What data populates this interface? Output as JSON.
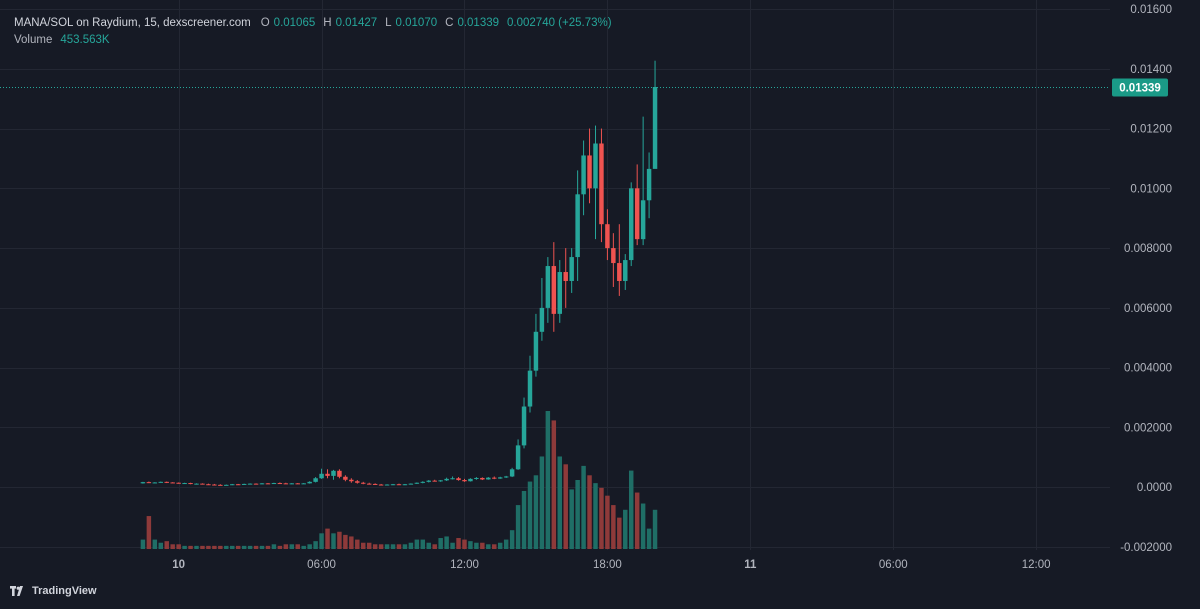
{
  "legend": {
    "symbol": "MANA/SOL on Raydium, 15, dexscreener.com",
    "o_label": "O",
    "o_value": "0.01065",
    "h_label": "H",
    "h_value": "0.01427",
    "l_label": "L",
    "l_value": "0.01070",
    "c_label": "C",
    "c_value": "0.01339",
    "change": "0.002740 (+25.73%)",
    "volume_label": "Volume",
    "volume_value": "453.563K"
  },
  "brand": {
    "name": "TradingView"
  },
  "colors": {
    "background": "#161a25",
    "grid": "#232733",
    "up": "#26a69a",
    "down": "#ef5350",
    "up_volume": "#1f6e66",
    "down_volume": "#8e3a3a",
    "axis_text": "#b2b5be",
    "price_tag": "#1a9a87"
  },
  "chart_data": {
    "type": "candlestick",
    "ylim": [
      -0.0021,
      0.0161
    ],
    "yticks": [
      "0.01600",
      "0.01400",
      "0.01200",
      "0.01000",
      "0.008000",
      "0.006000",
      "0.004000",
      "0.002000",
      "0.0000",
      "-0.002000"
    ],
    "ytick_values": [
      0.016,
      0.014,
      0.012,
      0.01,
      0.008,
      0.006,
      0.004,
      0.002,
      0.0,
      -0.002
    ],
    "xticks": [
      "10",
      "06:00",
      "12:00",
      "18:00",
      "11",
      "06:00",
      "12:00"
    ],
    "xtick_hours": [
      0,
      6,
      12,
      18,
      24,
      30,
      36
    ],
    "xlim_hours": [
      -7.5,
      39.1
    ],
    "last_price": "0.01339",
    "last_price_value": 0.01339,
    "first_candle_hour": -1.5,
    "candle_interval_min": 15,
    "candles": [
      [
        0.00013,
        0.00018,
        0.00012,
        0.00017,
        0.6
      ],
      [
        0.00017,
        0.00019,
        0.00014,
        0.00015,
        2.1
      ],
      [
        0.00015,
        0.00017,
        0.00013,
        0.00016,
        0.6
      ],
      [
        0.00016,
        0.00019,
        0.00015,
        0.00018,
        0.4
      ],
      [
        0.00018,
        0.00019,
        0.00014,
        0.00016,
        0.5
      ],
      [
        0.00016,
        0.00017,
        0.00014,
        0.00015,
        0.3
      ],
      [
        0.00015,
        0.00016,
        0.00012,
        0.00013,
        0.3
      ],
      [
        0.00013,
        0.00015,
        0.00011,
        0.00014,
        0.2
      ],
      [
        0.00014,
        0.00015,
        0.0001,
        0.00011,
        0.2
      ],
      [
        0.00011,
        0.00013,
        9e-05,
        0.00012,
        0.2
      ],
      [
        0.00012,
        0.00013,
        9e-05,
        0.0001,
        0.2
      ],
      [
        0.0001,
        0.00012,
        8e-05,
        9e-05,
        0.2
      ],
      [
        9e-05,
        0.00011,
        7e-05,
        8e-05,
        0.2
      ],
      [
        8e-05,
        0.0001,
        6e-05,
        7e-05,
        0.2
      ],
      [
        7e-05,
        9e-05,
        6e-05,
        8e-05,
        0.2
      ],
      [
        8e-05,
        0.00011,
        7e-05,
        0.0001,
        0.2
      ],
      [
        0.0001,
        0.00011,
        8e-05,
        9e-05,
        0.2
      ],
      [
        9e-05,
        0.00012,
        8e-05,
        0.00011,
        0.2
      ],
      [
        0.00011,
        0.00013,
        0.0001,
        0.00012,
        0.2
      ],
      [
        0.00012,
        0.00013,
        0.0001,
        0.00011,
        0.2
      ],
      [
        0.00011,
        0.00014,
        0.0001,
        0.00013,
        0.2
      ],
      [
        0.00013,
        0.00014,
        0.00011,
        0.00012,
        0.2
      ],
      [
        0.00012,
        0.00015,
        0.00011,
        0.00014,
        0.3
      ],
      [
        0.00014,
        0.00016,
        0.00012,
        0.00013,
        0.2
      ],
      [
        0.00013,
        0.00015,
        0.00011,
        0.00012,
        0.3
      ],
      [
        0.00012,
        0.00014,
        0.0001,
        0.00013,
        0.3
      ],
      [
        0.00013,
        0.00014,
        0.00011,
        0.00012,
        0.3
      ],
      [
        0.00012,
        0.00014,
        0.00011,
        0.00013,
        0.2
      ],
      [
        0.00013,
        0.0002,
        0.00012,
        0.00018,
        0.3
      ],
      [
        0.00018,
        0.00034,
        0.00016,
        0.0003,
        0.5
      ],
      [
        0.0003,
        0.00062,
        0.00028,
        0.00045,
        1.0
      ],
      [
        0.00045,
        0.0006,
        0.0003,
        0.00038,
        1.3
      ],
      [
        0.00038,
        0.00058,
        0.00025,
        0.00055,
        1.0
      ],
      [
        0.00055,
        0.0006,
        0.0003,
        0.00035,
        1.1
      ],
      [
        0.00035,
        0.0004,
        0.0002,
        0.00025,
        0.9
      ],
      [
        0.00025,
        0.0003,
        0.00015,
        0.0002,
        0.8
      ],
      [
        0.0002,
        0.00024,
        0.00012,
        0.00015,
        0.6
      ],
      [
        0.00015,
        0.00018,
        0.0001,
        0.00012,
        0.4
      ],
      [
        0.00012,
        0.00015,
        9e-05,
        0.00011,
        0.4
      ],
      [
        0.00011,
        0.00013,
        8e-05,
        9e-05,
        0.3
      ],
      [
        9e-05,
        0.00011,
        7e-05,
        8e-05,
        0.3
      ],
      [
        8e-05,
        0.0001,
        6e-05,
        9e-05,
        0.3
      ],
      [
        9e-05,
        0.00011,
        7e-05,
        0.0001,
        0.3
      ],
      [
        0.0001,
        0.00012,
        8e-05,
        9e-05,
        0.3
      ],
      [
        9e-05,
        0.00011,
        7e-05,
        0.0001,
        0.3
      ],
      [
        0.0001,
        0.00013,
        9e-05,
        0.00012,
        0.4
      ],
      [
        0.00012,
        0.00016,
        0.00011,
        0.00015,
        0.6
      ],
      [
        0.00015,
        0.0002,
        0.00013,
        0.00018,
        0.6
      ],
      [
        0.00018,
        0.00024,
        0.00016,
        0.00022,
        0.4
      ],
      [
        0.00022,
        0.00025,
        0.00019,
        0.0002,
        0.3
      ],
      [
        0.0002,
        0.00024,
        0.00018,
        0.00023,
        0.7
      ],
      [
        0.00023,
        0.00032,
        0.00021,
        0.00028,
        0.8
      ],
      [
        0.00028,
        0.00036,
        0.00026,
        0.0003,
        0.4
      ],
      [
        0.0003,
        0.00034,
        0.00022,
        0.00024,
        0.7
      ],
      [
        0.00024,
        0.00028,
        0.00018,
        0.0002,
        0.6
      ],
      [
        0.0002,
        0.0003,
        0.00019,
        0.00028,
        0.5
      ],
      [
        0.00028,
        0.00034,
        0.00025,
        0.00031,
        0.4
      ],
      [
        0.00031,
        0.00033,
        0.00024,
        0.00026,
        0.4
      ],
      [
        0.00026,
        0.00034,
        0.00025,
        0.00032,
        0.3
      ],
      [
        0.00032,
        0.00036,
        0.00027,
        0.00029,
        0.3
      ],
      [
        0.00029,
        0.00035,
        0.00028,
        0.00033,
        0.4
      ],
      [
        0.00033,
        0.00038,
        0.00031,
        0.00036,
        0.6
      ],
      [
        0.00036,
        0.00065,
        0.00034,
        0.0006,
        1.2
      ],
      [
        0.0006,
        0.0016,
        0.00058,
        0.0014,
        2.8
      ],
      [
        0.0014,
        0.003,
        0.0013,
        0.0027,
        3.7
      ],
      [
        0.0027,
        0.0044,
        0.0025,
        0.0039,
        4.3
      ],
      [
        0.0039,
        0.0058,
        0.0037,
        0.0052,
        4.7
      ],
      [
        0.0052,
        0.007,
        0.0049,
        0.006,
        5.9
      ],
      [
        0.006,
        0.0077,
        0.0055,
        0.0074,
        8.8
      ],
      [
        0.0074,
        0.0082,
        0.0052,
        0.0058,
        8.2
      ],
      [
        0.0058,
        0.0076,
        0.0055,
        0.0072,
        5.9
      ],
      [
        0.0072,
        0.008,
        0.006,
        0.0069,
        5.4
      ],
      [
        0.0069,
        0.008,
        0.0065,
        0.0077,
        3.8
      ],
      [
        0.0077,
        0.0106,
        0.0069,
        0.0098,
        4.4
      ],
      [
        0.0098,
        0.0116,
        0.0091,
        0.0111,
        5.3
      ],
      [
        0.0111,
        0.012,
        0.0095,
        0.01,
        4.7
      ],
      [
        0.01,
        0.0121,
        0.0083,
        0.0115,
        4.2
      ],
      [
        0.0115,
        0.012,
        0.0082,
        0.0088,
        3.9
      ],
      [
        0.0088,
        0.0093,
        0.0076,
        0.008,
        3.4
      ],
      [
        0.008,
        0.0085,
        0.0067,
        0.0075,
        2.8
      ],
      [
        0.0075,
        0.0088,
        0.0064,
        0.0069,
        2.0
      ],
      [
        0.0069,
        0.0078,
        0.0066,
        0.0076,
        2.5
      ],
      [
        0.0076,
        0.0102,
        0.0074,
        0.01,
        5.0
      ],
      [
        0.01,
        0.0108,
        0.0081,
        0.0083,
        3.6
      ],
      [
        0.0083,
        0.0124,
        0.0081,
        0.0096,
        2.9
      ],
      [
        0.0096,
        0.0112,
        0.009,
        0.01065,
        1.3
      ],
      [
        0.01065,
        0.01427,
        0.0107,
        0.01339,
        2.5
      ]
    ]
  }
}
